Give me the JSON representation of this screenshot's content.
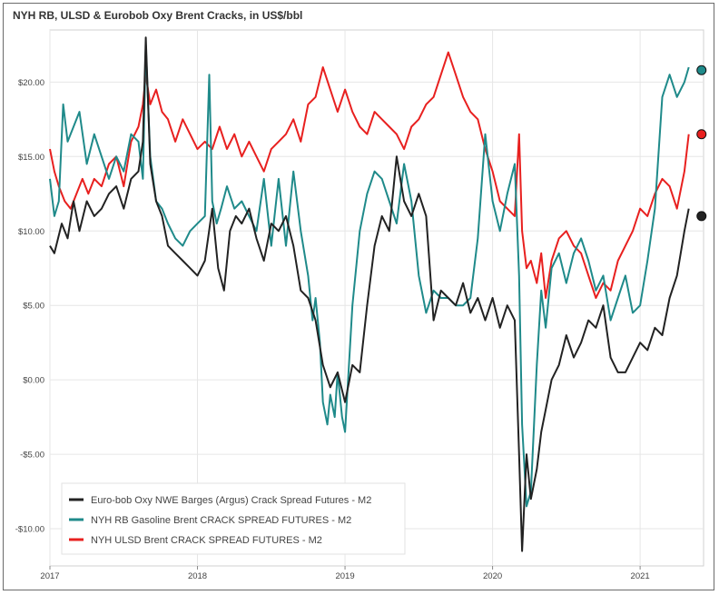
{
  "chart_data": {
    "type": "line",
    "title": "NYH RB, ULSD & Eurobob Oxy Brent Cracks, in US$/bbl",
    "xlabel": "",
    "ylabel": "",
    "x_range": [
      2017.0,
      2021.43
    ],
    "ylim": [
      -12.5,
      23.5
    ],
    "y_ticks": [
      -10,
      -5,
      0,
      5,
      10,
      15,
      20
    ],
    "y_tick_labels": [
      "-$10.00",
      "-$5.00",
      "$0.00",
      "$5.00",
      "$10.00",
      "$15.00",
      "$20.00"
    ],
    "x_ticks": [
      2017,
      2018,
      2019,
      2020,
      2021
    ],
    "x_tick_labels": [
      "2017",
      "2018",
      "2019",
      "2020",
      "2021"
    ],
    "grid": true,
    "legend_position": "bottom-left",
    "series": [
      {
        "name": "Euro-bob Oxy NWE Barges (Argus) Crack Spread Futures - M2",
        "color": "#222222",
        "x": [
          2017.0,
          2017.03,
          2017.08,
          2017.12,
          2017.16,
          2017.2,
          2017.25,
          2017.3,
          2017.35,
          2017.4,
          2017.45,
          2017.5,
          2017.55,
          2017.6,
          2017.63,
          2017.65,
          2017.68,
          2017.72,
          2017.76,
          2017.8,
          2017.85,
          2017.9,
          2017.95,
          2018.0,
          2018.05,
          2018.1,
          2018.14,
          2018.18,
          2018.22,
          2018.26,
          2018.3,
          2018.35,
          2018.4,
          2018.45,
          2018.5,
          2018.55,
          2018.6,
          2018.65,
          2018.7,
          2018.75,
          2018.8,
          2018.85,
          2018.9,
          2018.95,
          2019.0,
          2019.05,
          2019.1,
          2019.15,
          2019.2,
          2019.25,
          2019.3,
          2019.35,
          2019.4,
          2019.45,
          2019.5,
          2019.55,
          2019.6,
          2019.65,
          2019.7,
          2019.75,
          2019.8,
          2019.85,
          2019.9,
          2019.95,
          2020.0,
          2020.05,
          2020.1,
          2020.15,
          2020.18,
          2020.2,
          2020.23,
          2020.26,
          2020.3,
          2020.33,
          2020.36,
          2020.4,
          2020.45,
          2020.5,
          2020.55,
          2020.6,
          2020.65,
          2020.7,
          2020.75,
          2020.8,
          2020.85,
          2020.9,
          2020.95,
          2021.0,
          2021.05,
          2021.1,
          2021.15,
          2021.2,
          2021.25,
          2021.3,
          2021.33
        ],
        "values": [
          9.0,
          8.5,
          10.5,
          9.5,
          12.0,
          10.0,
          12.0,
          11.0,
          11.5,
          12.5,
          13.0,
          11.5,
          13.5,
          14.0,
          16.0,
          23.0,
          14.5,
          12.0,
          11.0,
          9.0,
          8.5,
          8.0,
          7.5,
          7.0,
          8.0,
          11.5,
          7.5,
          6.0,
          10.0,
          11.0,
          10.5,
          11.5,
          9.5,
          8.0,
          10.5,
          10.0,
          11.0,
          9.0,
          6.0,
          5.5,
          4.0,
          1.0,
          -0.5,
          0.5,
          -1.5,
          1.0,
          0.5,
          5.0,
          9.0,
          11.0,
          10.0,
          15.0,
          12.0,
          11.0,
          12.5,
          11.0,
          4.0,
          6.0,
          5.5,
          5.0,
          6.5,
          4.5,
          5.5,
          4.0,
          5.5,
          3.5,
          5.0,
          4.0,
          -5.0,
          -11.5,
          -5.0,
          -8.0,
          -6.0,
          -3.5,
          -2.0,
          0.0,
          1.0,
          3.0,
          1.5,
          2.5,
          4.0,
          3.5,
          5.0,
          1.5,
          0.5,
          0.5,
          1.5,
          2.5,
          2.0,
          3.5,
          3.0,
          5.5,
          7.0,
          10.0,
          11.5
        ],
        "end_marker": 11.0
      },
      {
        "name": "NYH RB Gasoline Brent CRACK SPREAD FUTURES - M2",
        "color": "#1f8a8a",
        "x": [
          2017.0,
          2017.03,
          2017.06,
          2017.09,
          2017.12,
          2017.16,
          2017.2,
          2017.25,
          2017.3,
          2017.35,
          2017.4,
          2017.45,
          2017.5,
          2017.55,
          2017.6,
          2017.63,
          2017.65,
          2017.68,
          2017.72,
          2017.76,
          2017.8,
          2017.85,
          2017.9,
          2017.95,
          2018.0,
          2018.05,
          2018.08,
          2018.1,
          2018.13,
          2018.16,
          2018.2,
          2018.25,
          2018.3,
          2018.35,
          2018.4,
          2018.45,
          2018.5,
          2018.55,
          2018.6,
          2018.65,
          2018.7,
          2018.75,
          2018.78,
          2018.8,
          2018.83,
          2018.85,
          2018.88,
          2018.9,
          2018.93,
          2018.95,
          2018.98,
          2019.0,
          2019.05,
          2019.1,
          2019.15,
          2019.2,
          2019.25,
          2019.3,
          2019.35,
          2019.4,
          2019.45,
          2019.5,
          2019.55,
          2019.6,
          2019.65,
          2019.7,
          2019.75,
          2019.8,
          2019.85,
          2019.9,
          2019.95,
          2020.0,
          2020.05,
          2020.1,
          2020.15,
          2020.18,
          2020.2,
          2020.23,
          2020.26,
          2020.3,
          2020.33,
          2020.36,
          2020.4,
          2020.45,
          2020.5,
          2020.55,
          2020.6,
          2020.65,
          2020.7,
          2020.75,
          2020.8,
          2020.85,
          2020.9,
          2020.95,
          2021.0,
          2021.05,
          2021.1,
          2021.15,
          2021.2,
          2021.25,
          2021.3,
          2021.33
        ],
        "values": [
          13.5,
          11.0,
          12.0,
          18.5,
          16.0,
          17.0,
          18.0,
          14.5,
          16.5,
          15.0,
          13.5,
          15.0,
          14.0,
          16.5,
          16.0,
          13.5,
          22.5,
          15.0,
          12.0,
          11.5,
          10.5,
          9.5,
          9.0,
          10.0,
          10.5,
          11.0,
          20.5,
          12.0,
          10.5,
          11.5,
          13.0,
          11.5,
          12.0,
          11.0,
          10.0,
          13.5,
          9.0,
          13.5,
          9.0,
          14.0,
          10.0,
          7.0,
          4.0,
          5.5,
          2.5,
          -1.5,
          -3.0,
          -1.0,
          -2.5,
          0.5,
          -2.5,
          -3.5,
          5.0,
          10.0,
          12.5,
          14.0,
          13.5,
          12.0,
          10.5,
          14.5,
          12.0,
          7.0,
          4.5,
          6.0,
          5.5,
          5.5,
          5.0,
          5.0,
          5.5,
          9.5,
          16.5,
          12.0,
          10.0,
          12.5,
          14.5,
          7.0,
          -3.0,
          -8.5,
          -7.5,
          1.0,
          6.0,
          3.5,
          7.5,
          8.5,
          6.5,
          8.5,
          9.5,
          8.0,
          6.0,
          7.0,
          4.0,
          5.5,
          7.0,
          4.5,
          5.0,
          8.0,
          11.5,
          19.0,
          20.5,
          19.0,
          20.0,
          21.0
        ],
        "end_marker": 20.8
      },
      {
        "name": "NYH ULSD Brent CRACK SPREAD FUTURES - M2",
        "color": "#e8201f",
        "x": [
          2017.0,
          2017.03,
          2017.06,
          2017.1,
          2017.14,
          2017.18,
          2017.22,
          2017.26,
          2017.3,
          2017.35,
          2017.4,
          2017.45,
          2017.5,
          2017.55,
          2017.6,
          2017.63,
          2017.65,
          2017.68,
          2017.72,
          2017.76,
          2017.8,
          2017.85,
          2017.9,
          2017.95,
          2018.0,
          2018.05,
          2018.1,
          2018.15,
          2018.2,
          2018.25,
          2018.3,
          2018.35,
          2018.4,
          2018.45,
          2018.5,
          2018.55,
          2018.6,
          2018.65,
          2018.7,
          2018.75,
          2018.8,
          2018.85,
          2018.9,
          2018.95,
          2019.0,
          2019.05,
          2019.1,
          2019.15,
          2019.2,
          2019.25,
          2019.3,
          2019.35,
          2019.4,
          2019.45,
          2019.5,
          2019.55,
          2019.6,
          2019.65,
          2019.7,
          2019.75,
          2019.8,
          2019.85,
          2019.9,
          2019.95,
          2020.0,
          2020.05,
          2020.1,
          2020.15,
          2020.18,
          2020.2,
          2020.23,
          2020.26,
          2020.3,
          2020.33,
          2020.36,
          2020.4,
          2020.45,
          2020.5,
          2020.55,
          2020.6,
          2020.65,
          2020.7,
          2020.75,
          2020.8,
          2020.85,
          2020.9,
          2020.95,
          2021.0,
          2021.05,
          2021.1,
          2021.15,
          2021.2,
          2021.25,
          2021.3,
          2021.33
        ],
        "values": [
          15.5,
          14.0,
          13.0,
          12.0,
          11.5,
          12.5,
          13.5,
          12.5,
          13.5,
          13.0,
          14.5,
          15.0,
          13.0,
          16.0,
          17.0,
          18.5,
          20.5,
          18.5,
          19.5,
          18.0,
          17.5,
          16.0,
          17.5,
          16.5,
          15.5,
          16.0,
          15.5,
          17.0,
          15.5,
          16.5,
          15.0,
          16.0,
          15.0,
          14.0,
          15.5,
          16.0,
          16.5,
          17.5,
          16.0,
          18.5,
          19.0,
          21.0,
          19.5,
          18.0,
          19.5,
          18.0,
          17.0,
          16.5,
          18.0,
          17.5,
          17.0,
          16.5,
          15.5,
          17.0,
          17.5,
          18.5,
          19.0,
          20.5,
          22.0,
          20.5,
          19.0,
          18.0,
          17.5,
          15.5,
          14.0,
          12.0,
          11.5,
          11.0,
          16.5,
          10.0,
          7.5,
          8.0,
          6.5,
          8.5,
          5.5,
          8.0,
          9.5,
          10.0,
          9.0,
          8.5,
          7.0,
          5.5,
          6.5,
          6.0,
          8.0,
          9.0,
          10.0,
          11.5,
          11.0,
          12.5,
          13.5,
          13.0,
          11.5,
          14.0,
          16.5
        ],
        "end_marker": 16.5
      }
    ]
  },
  "legend": {
    "items": [
      {
        "label": "Euro-bob Oxy NWE Barges (Argus) Crack Spread Futures - M2",
        "color": "#222222"
      },
      {
        "label": "NYH RB Gasoline Brent CRACK SPREAD FUTURES - M2",
        "color": "#1f8a8a"
      },
      {
        "label": "NYH ULSD Brent CRACK SPREAD FUTURES - M2",
        "color": "#e8201f"
      }
    ]
  }
}
